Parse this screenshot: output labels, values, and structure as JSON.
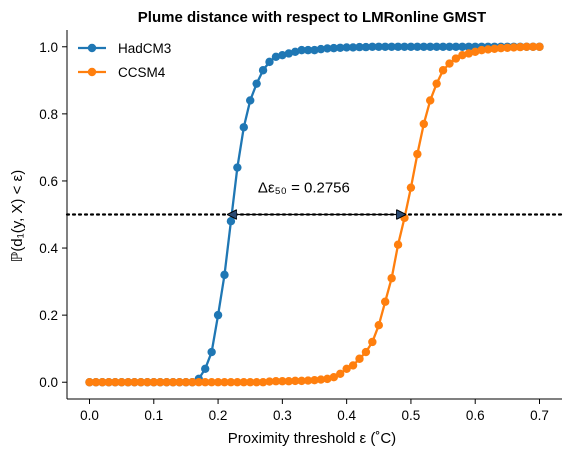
{
  "chart_data": {
    "type": "line",
    "title": "Plume distance with respect to LMRonline GMST",
    "xlabel": "Proximity threshold ε (˚C)",
    "ylabel": "ℙ(d₁(y, X) < ε)",
    "xlim": [
      -0.035,
      0.735
    ],
    "ylim": [
      -0.05,
      1.05
    ],
    "xticks": [
      0.0,
      0.1,
      0.2,
      0.3,
      0.4,
      0.5,
      0.6,
      0.7
    ],
    "xtick_labels": [
      "0.0",
      "0.1",
      "0.2",
      "0.3",
      "0.4",
      "0.5",
      "0.6",
      "0.7"
    ],
    "yticks": [
      0.0,
      0.2,
      0.4,
      0.6,
      0.8,
      1.0
    ],
    "ytick_labels": [
      "0.0",
      "0.2",
      "0.4",
      "0.6",
      "0.8",
      "1.0"
    ],
    "grid": false,
    "legend_position": "top-left",
    "x": [
      0.0,
      0.01,
      0.02,
      0.03,
      0.04,
      0.05,
      0.06,
      0.07,
      0.08,
      0.09,
      0.1,
      0.11,
      0.12,
      0.13,
      0.14,
      0.15,
      0.16,
      0.17,
      0.18,
      0.19,
      0.2,
      0.21,
      0.22,
      0.23,
      0.24,
      0.25,
      0.26,
      0.27,
      0.28,
      0.29,
      0.3,
      0.31,
      0.32,
      0.33,
      0.34,
      0.35,
      0.36,
      0.37,
      0.38,
      0.39,
      0.4,
      0.41,
      0.42,
      0.43,
      0.44,
      0.45,
      0.46,
      0.47,
      0.48,
      0.49,
      0.5,
      0.51,
      0.52,
      0.53,
      0.54,
      0.55,
      0.56,
      0.57,
      0.58,
      0.59,
      0.6,
      0.61,
      0.62,
      0.63,
      0.64,
      0.65,
      0.66,
      0.67,
      0.68,
      0.69,
      0.7
    ],
    "series": [
      {
        "name": "HadCM3",
        "color": "#1f77b4",
        "values": [
          0,
          0,
          0,
          0,
          0,
          0,
          0,
          0,
          0,
          0,
          0,
          0,
          0,
          0,
          0,
          0,
          0,
          0.01,
          0.04,
          0.09,
          0.2,
          0.32,
          0.48,
          0.64,
          0.76,
          0.84,
          0.89,
          0.93,
          0.955,
          0.97,
          0.975,
          0.98,
          0.985,
          0.99,
          0.99,
          0.99,
          0.993,
          0.995,
          0.996,
          0.997,
          0.998,
          0.998,
          0.999,
          0.999,
          1.0,
          1.0,
          1.0,
          1.0,
          1.0,
          1.0,
          1.0,
          1.0,
          1.0,
          1.0,
          1.0,
          1.0,
          1.0,
          1.0,
          1.0,
          1.0,
          1.0,
          1.0,
          1.0,
          1.0,
          1.0,
          1.0,
          1.0,
          1.0,
          1.0,
          1.0,
          1.0
        ]
      },
      {
        "name": "CCSM4",
        "color": "#ff7f0e",
        "values": [
          0,
          0,
          0,
          0,
          0,
          0,
          0,
          0,
          0,
          0,
          0,
          0,
          0,
          0,
          0,
          0,
          0,
          0,
          0,
          0,
          0,
          0,
          0,
          0,
          0,
          0,
          0,
          0,
          0.002,
          0.003,
          0.003,
          0.003,
          0.004,
          0.004,
          0.005,
          0.006,
          0.008,
          0.01,
          0.015,
          0.025,
          0.04,
          0.05,
          0.07,
          0.09,
          0.12,
          0.17,
          0.24,
          0.31,
          0.41,
          0.49,
          0.58,
          0.68,
          0.77,
          0.84,
          0.89,
          0.93,
          0.95,
          0.965,
          0.975,
          0.98,
          0.985,
          0.99,
          0.992,
          0.994,
          0.996,
          0.997,
          0.998,
          0.999,
          1.0,
          1.0,
          1.0
        ]
      }
    ],
    "reference_line": {
      "y": 0.5,
      "style": "dotted",
      "color": "#000000"
    },
    "annotation": {
      "text": "Δε₅₀ =  0.2756",
      "from_x": 0.2155,
      "to_x": 0.4911,
      "y": 0.5,
      "text_x": 0.262,
      "text_y": 0.565
    }
  }
}
